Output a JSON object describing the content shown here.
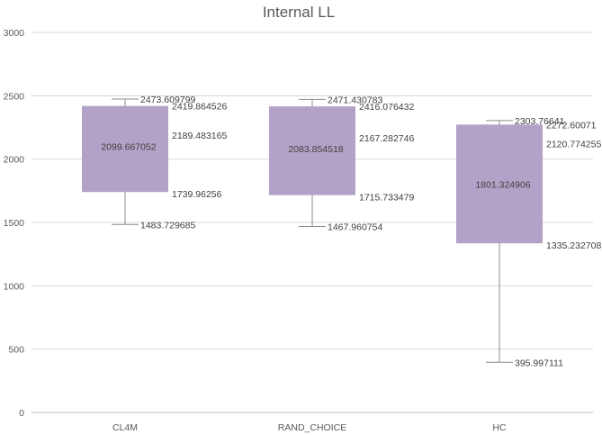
{
  "chart_data": {
    "type": "box",
    "title": "Internal LL",
    "xlabel": "",
    "ylabel": "",
    "ylim": [
      0,
      3000
    ],
    "yticks": [
      0,
      500,
      1000,
      1500,
      2000,
      2500,
      3000
    ],
    "grid": true,
    "legend": "none",
    "box_color": "#b3a2c7",
    "categories": [
      "CL4M",
      "RAND_CHOICE",
      "HC"
    ],
    "boxes": [
      {
        "category": "CL4M",
        "min": 1483.729685,
        "q1": 1739.96256,
        "median": 2189.483165,
        "mean": 2099.667052,
        "q3": 2419.864526,
        "max": 2473.609799,
        "labels": {
          "max": "2473.609799",
          "q3": "2419.864526",
          "median": "2189.483165",
          "mean": "2099.667052",
          "q1": "1739.96256",
          "min": "1483.729685"
        }
      },
      {
        "category": "RAND_CHOICE",
        "min": 1467.960754,
        "q1": 1715.733479,
        "median": 2167.282746,
        "mean": 2083.854518,
        "q3": 2416.076432,
        "max": 2471.430783,
        "labels": {
          "max": "2471.430783",
          "q3": "2416.076432",
          "median": "2167.282746",
          "mean": "2083.854518",
          "q1": "1715.733479",
          "min": "1467.960754"
        }
      },
      {
        "category": "HC",
        "min": 395.997111,
        "q1": 1335.232708,
        "median": 2120.774255,
        "mean": 1801.324906,
        "q3": 2272.60071,
        "max": 2303.76641,
        "labels": {
          "max": "2303.76641",
          "q3": "2272.60071",
          "median": "2120.774255",
          "mean": "1801.324906",
          "q1": "1335.232708",
          "min": "395.997111"
        }
      }
    ]
  }
}
